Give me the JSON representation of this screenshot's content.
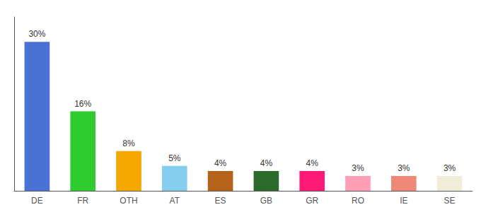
{
  "chart_data": {
    "type": "bar",
    "categories": [
      "DE",
      "FR",
      "OTH",
      "AT",
      "ES",
      "GB",
      "GR",
      "RO",
      "IE",
      "SE"
    ],
    "values": [
      30,
      16,
      8,
      5,
      4,
      4,
      4,
      3,
      3,
      3
    ],
    "value_labels": [
      "30%",
      "16%",
      "8%",
      "5%",
      "4%",
      "4%",
      "4%",
      "3%",
      "3%",
      "3%"
    ],
    "colors": [
      "#4a72d4",
      "#2ecc2e",
      "#f5a800",
      "#85cef0",
      "#b5621a",
      "#2a6b2a",
      "#ff1a75",
      "#ff9eb5",
      "#f08878",
      "#f0edd8"
    ],
    "ylim": [
      0,
      35
    ],
    "data_labels": true,
    "tick_labels": "x",
    "grid": false
  }
}
